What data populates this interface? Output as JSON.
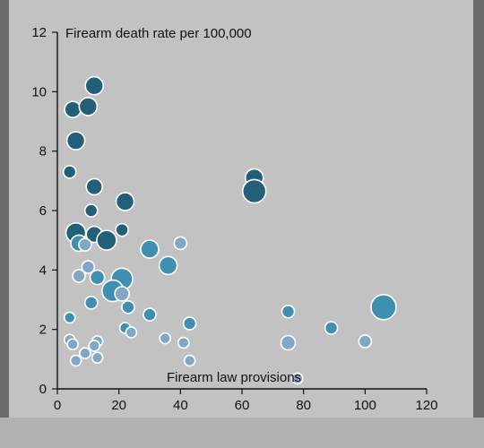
{
  "chart_data": {
    "type": "scatter",
    "ylabel": "Firearm death rate per 100,000",
    "xlabel": "Firearm law provisions",
    "xlim": [
      0,
      120
    ],
    "ylim": [
      0,
      12
    ],
    "xticks": [
      "0",
      "20",
      "40",
      "60",
      "80",
      "100",
      "120"
    ],
    "yticks": [
      "0",
      "2",
      "4",
      "6",
      "8",
      "10",
      "12"
    ],
    "grid": false,
    "colors": {
      "dark": "#245f78",
      "mid": "#3f8fb0",
      "light": "#7ea8c6",
      "stroke": "#ffffff",
      "background": "#c2c2c2"
    },
    "points": [
      {
        "x": 5,
        "y": 9.4,
        "size": 9,
        "tone": "dark"
      },
      {
        "x": 12,
        "y": 10.2,
        "size": 10,
        "tone": "dark"
      },
      {
        "x": 10,
        "y": 9.5,
        "size": 10,
        "tone": "dark"
      },
      {
        "x": 6,
        "y": 8.35,
        "size": 10,
        "tone": "dark"
      },
      {
        "x": 4,
        "y": 7.3,
        "size": 7,
        "tone": "dark"
      },
      {
        "x": 12,
        "y": 6.8,
        "size": 9,
        "tone": "dark"
      },
      {
        "x": 22,
        "y": 6.3,
        "size": 10,
        "tone": "dark"
      },
      {
        "x": 11,
        "y": 6.0,
        "size": 7,
        "tone": "dark"
      },
      {
        "x": 21,
        "y": 5.35,
        "size": 7,
        "tone": "dark"
      },
      {
        "x": 6,
        "y": 5.25,
        "size": 11,
        "tone": "dark"
      },
      {
        "x": 12,
        "y": 5.2,
        "size": 9,
        "tone": "dark"
      },
      {
        "x": 16,
        "y": 5.0,
        "size": 11,
        "tone": "dark"
      },
      {
        "x": 64,
        "y": 7.1,
        "size": 10,
        "tone": "dark"
      },
      {
        "x": 64,
        "y": 6.65,
        "size": 13,
        "tone": "dark"
      },
      {
        "x": 7,
        "y": 4.9,
        "size": 9,
        "tone": "mid"
      },
      {
        "x": 9,
        "y": 4.85,
        "size": 7,
        "tone": "light"
      },
      {
        "x": 30,
        "y": 4.7,
        "size": 10,
        "tone": "mid"
      },
      {
        "x": 40,
        "y": 4.9,
        "size": 7,
        "tone": "light"
      },
      {
        "x": 36,
        "y": 4.15,
        "size": 10,
        "tone": "mid"
      },
      {
        "x": 10,
        "y": 4.1,
        "size": 7,
        "tone": "light"
      },
      {
        "x": 7,
        "y": 3.8,
        "size": 7,
        "tone": "light"
      },
      {
        "x": 13,
        "y": 3.75,
        "size": 8,
        "tone": "mid"
      },
      {
        "x": 21,
        "y": 3.7,
        "size": 12,
        "tone": "mid"
      },
      {
        "x": 18,
        "y": 3.3,
        "size": 12,
        "tone": "mid"
      },
      {
        "x": 21,
        "y": 3.2,
        "size": 8,
        "tone": "light"
      },
      {
        "x": 11,
        "y": 2.9,
        "size": 7,
        "tone": "mid"
      },
      {
        "x": 23,
        "y": 2.75,
        "size": 7,
        "tone": "mid"
      },
      {
        "x": 30,
        "y": 2.5,
        "size": 7,
        "tone": "mid"
      },
      {
        "x": 4,
        "y": 2.4,
        "size": 6,
        "tone": "mid"
      },
      {
        "x": 43,
        "y": 2.2,
        "size": 7,
        "tone": "mid"
      },
      {
        "x": 22,
        "y": 2.05,
        "size": 6,
        "tone": "mid"
      },
      {
        "x": 24,
        "y": 1.9,
        "size": 6,
        "tone": "light"
      },
      {
        "x": 4,
        "y": 1.65,
        "size": 6,
        "tone": "light"
      },
      {
        "x": 5,
        "y": 1.5,
        "size": 6,
        "tone": "light"
      },
      {
        "x": 13,
        "y": 1.6,
        "size": 6,
        "tone": "light"
      },
      {
        "x": 12,
        "y": 1.45,
        "size": 6,
        "tone": "light"
      },
      {
        "x": 35,
        "y": 1.7,
        "size": 6,
        "tone": "light"
      },
      {
        "x": 41,
        "y": 1.55,
        "size": 6,
        "tone": "light"
      },
      {
        "x": 9,
        "y": 1.2,
        "size": 6,
        "tone": "light"
      },
      {
        "x": 13,
        "y": 1.05,
        "size": 6,
        "tone": "light"
      },
      {
        "x": 6,
        "y": 0.95,
        "size": 6,
        "tone": "light"
      },
      {
        "x": 43,
        "y": 0.95,
        "size": 6,
        "tone": "light"
      },
      {
        "x": 75,
        "y": 2.6,
        "size": 7,
        "tone": "mid"
      },
      {
        "x": 89,
        "y": 2.05,
        "size": 7,
        "tone": "mid"
      },
      {
        "x": 75,
        "y": 1.55,
        "size": 8,
        "tone": "light"
      },
      {
        "x": 100,
        "y": 1.6,
        "size": 7,
        "tone": "light"
      },
      {
        "x": 106,
        "y": 2.75,
        "size": 14,
        "tone": "mid"
      },
      {
        "x": 78,
        "y": 0.35,
        "size": 6,
        "tone": "light"
      }
    ]
  }
}
